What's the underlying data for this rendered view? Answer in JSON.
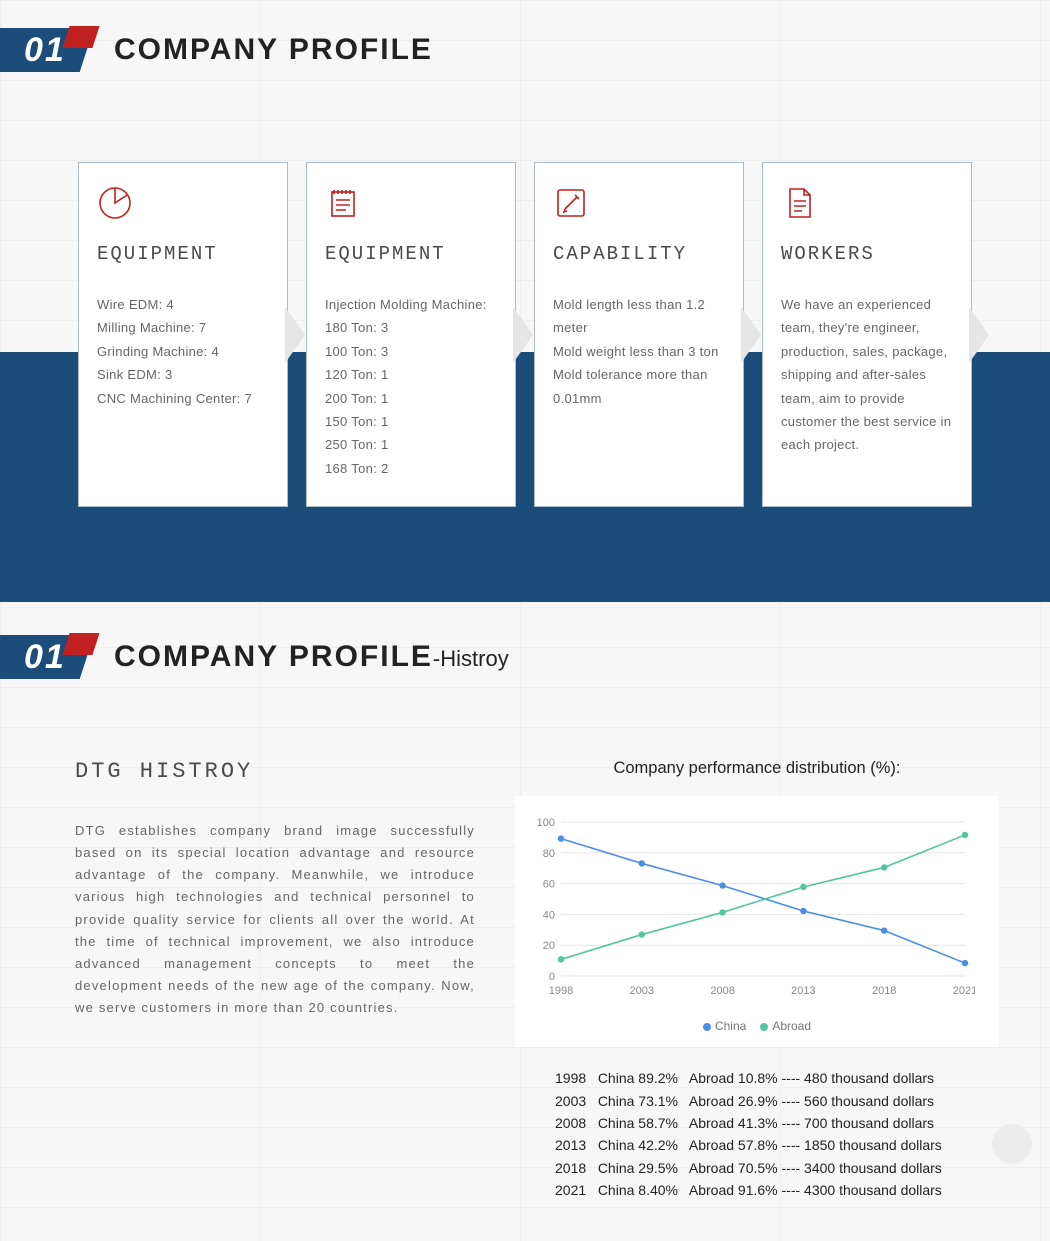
{
  "section1": {
    "badge_num": "01",
    "title": "COMPANY PROFILE"
  },
  "cards": [
    {
      "icon": "pie",
      "title": "EQUIPMENT",
      "body": "Wire EDM: 4\nMilling Machine: 7\nGrinding Machine: 4\nSink EDM: 3\nCNC Machining Center: 7"
    },
    {
      "icon": "notepad",
      "title": "EQUIPMENT",
      "body": "Injection Molding Machine:\n180 Ton: 3\n100 Ton: 3\n120 Ton: 1\n200 Ton: 1\n150 Ton: 1\n250 Ton: 1\n168 Ton: 2"
    },
    {
      "icon": "edit",
      "title": "CAPABILITY",
      "body": "Mold length less than 1.2 meter\nMold weight less than 3 ton\nMold tolerance more than 0.01mm"
    },
    {
      "icon": "doc",
      "title": "WORKERS",
      "body": "We have an experienced team, they're engineer, production, sales, package, shipping and after-sales team, aim to provide customer the best service in each project."
    }
  ],
  "section2": {
    "badge_num": "01",
    "title": "COMPANY PROFILE",
    "subtitle": "-Histroy"
  },
  "history": {
    "heading": "DTG HISTROY",
    "text": "DTG establishes company brand image successfully based on its special location advantage and resource advantage of the company. Meanwhile, we introduce various high technologies and technical personnel to provide quality service for clients all over the world. At the time of technical improvement, we also introduce advanced management concepts to meet the development needs of the new age of the company. Now, we serve customers in more than 20 countries."
  },
  "chart": {
    "title": "Company performance distribution (%):",
    "type": "line",
    "x_labels": [
      "1998",
      "2003",
      "2008",
      "2013",
      "2018",
      "2021"
    ],
    "ylim": [
      0,
      100
    ],
    "ytick_step": 20,
    "series": [
      {
        "name": "China",
        "color": "#4a90e2",
        "values": [
          89.2,
          73.1,
          58.7,
          42.2,
          29.5,
          8.4
        ]
      },
      {
        "name": "Abroad",
        "color": "#4fc6a0",
        "values": [
          10.8,
          26.9,
          41.3,
          57.8,
          70.5,
          91.6
        ]
      }
    ],
    "background_color": "#ffffff",
    "grid_color": "#e6e6e6",
    "axis_color": "#cccccc",
    "label_fontsize": 11,
    "marker_radius": 3.2
  },
  "data_rows": [
    {
      "year": "1998",
      "china": "China 89.2%",
      "abroad": "Abroad 10.8%",
      "amount": "480 thousand dollars"
    },
    {
      "year": "2003",
      "china": "China 73.1%",
      "abroad": "Abroad 26.9%",
      "amount": "560 thousand dollars"
    },
    {
      "year": "2008",
      "china": "China 58.7%",
      "abroad": "Abroad 41.3%",
      "amount": "700 thousand dollars"
    },
    {
      "year": "2013",
      "china": "China 42.2%",
      "abroad": "Abroad 57.8%",
      "amount": "1850 thousand dollars"
    },
    {
      "year": "2018",
      "china": "China 29.5%",
      "abroad": "Abroad 70.5%",
      "amount": "3400 thousand dollars"
    },
    {
      "year": "2021",
      "china": "China 8.40%",
      "abroad": "Abroad 91.6%",
      "amount": "4300 thousand dollars"
    }
  ]
}
